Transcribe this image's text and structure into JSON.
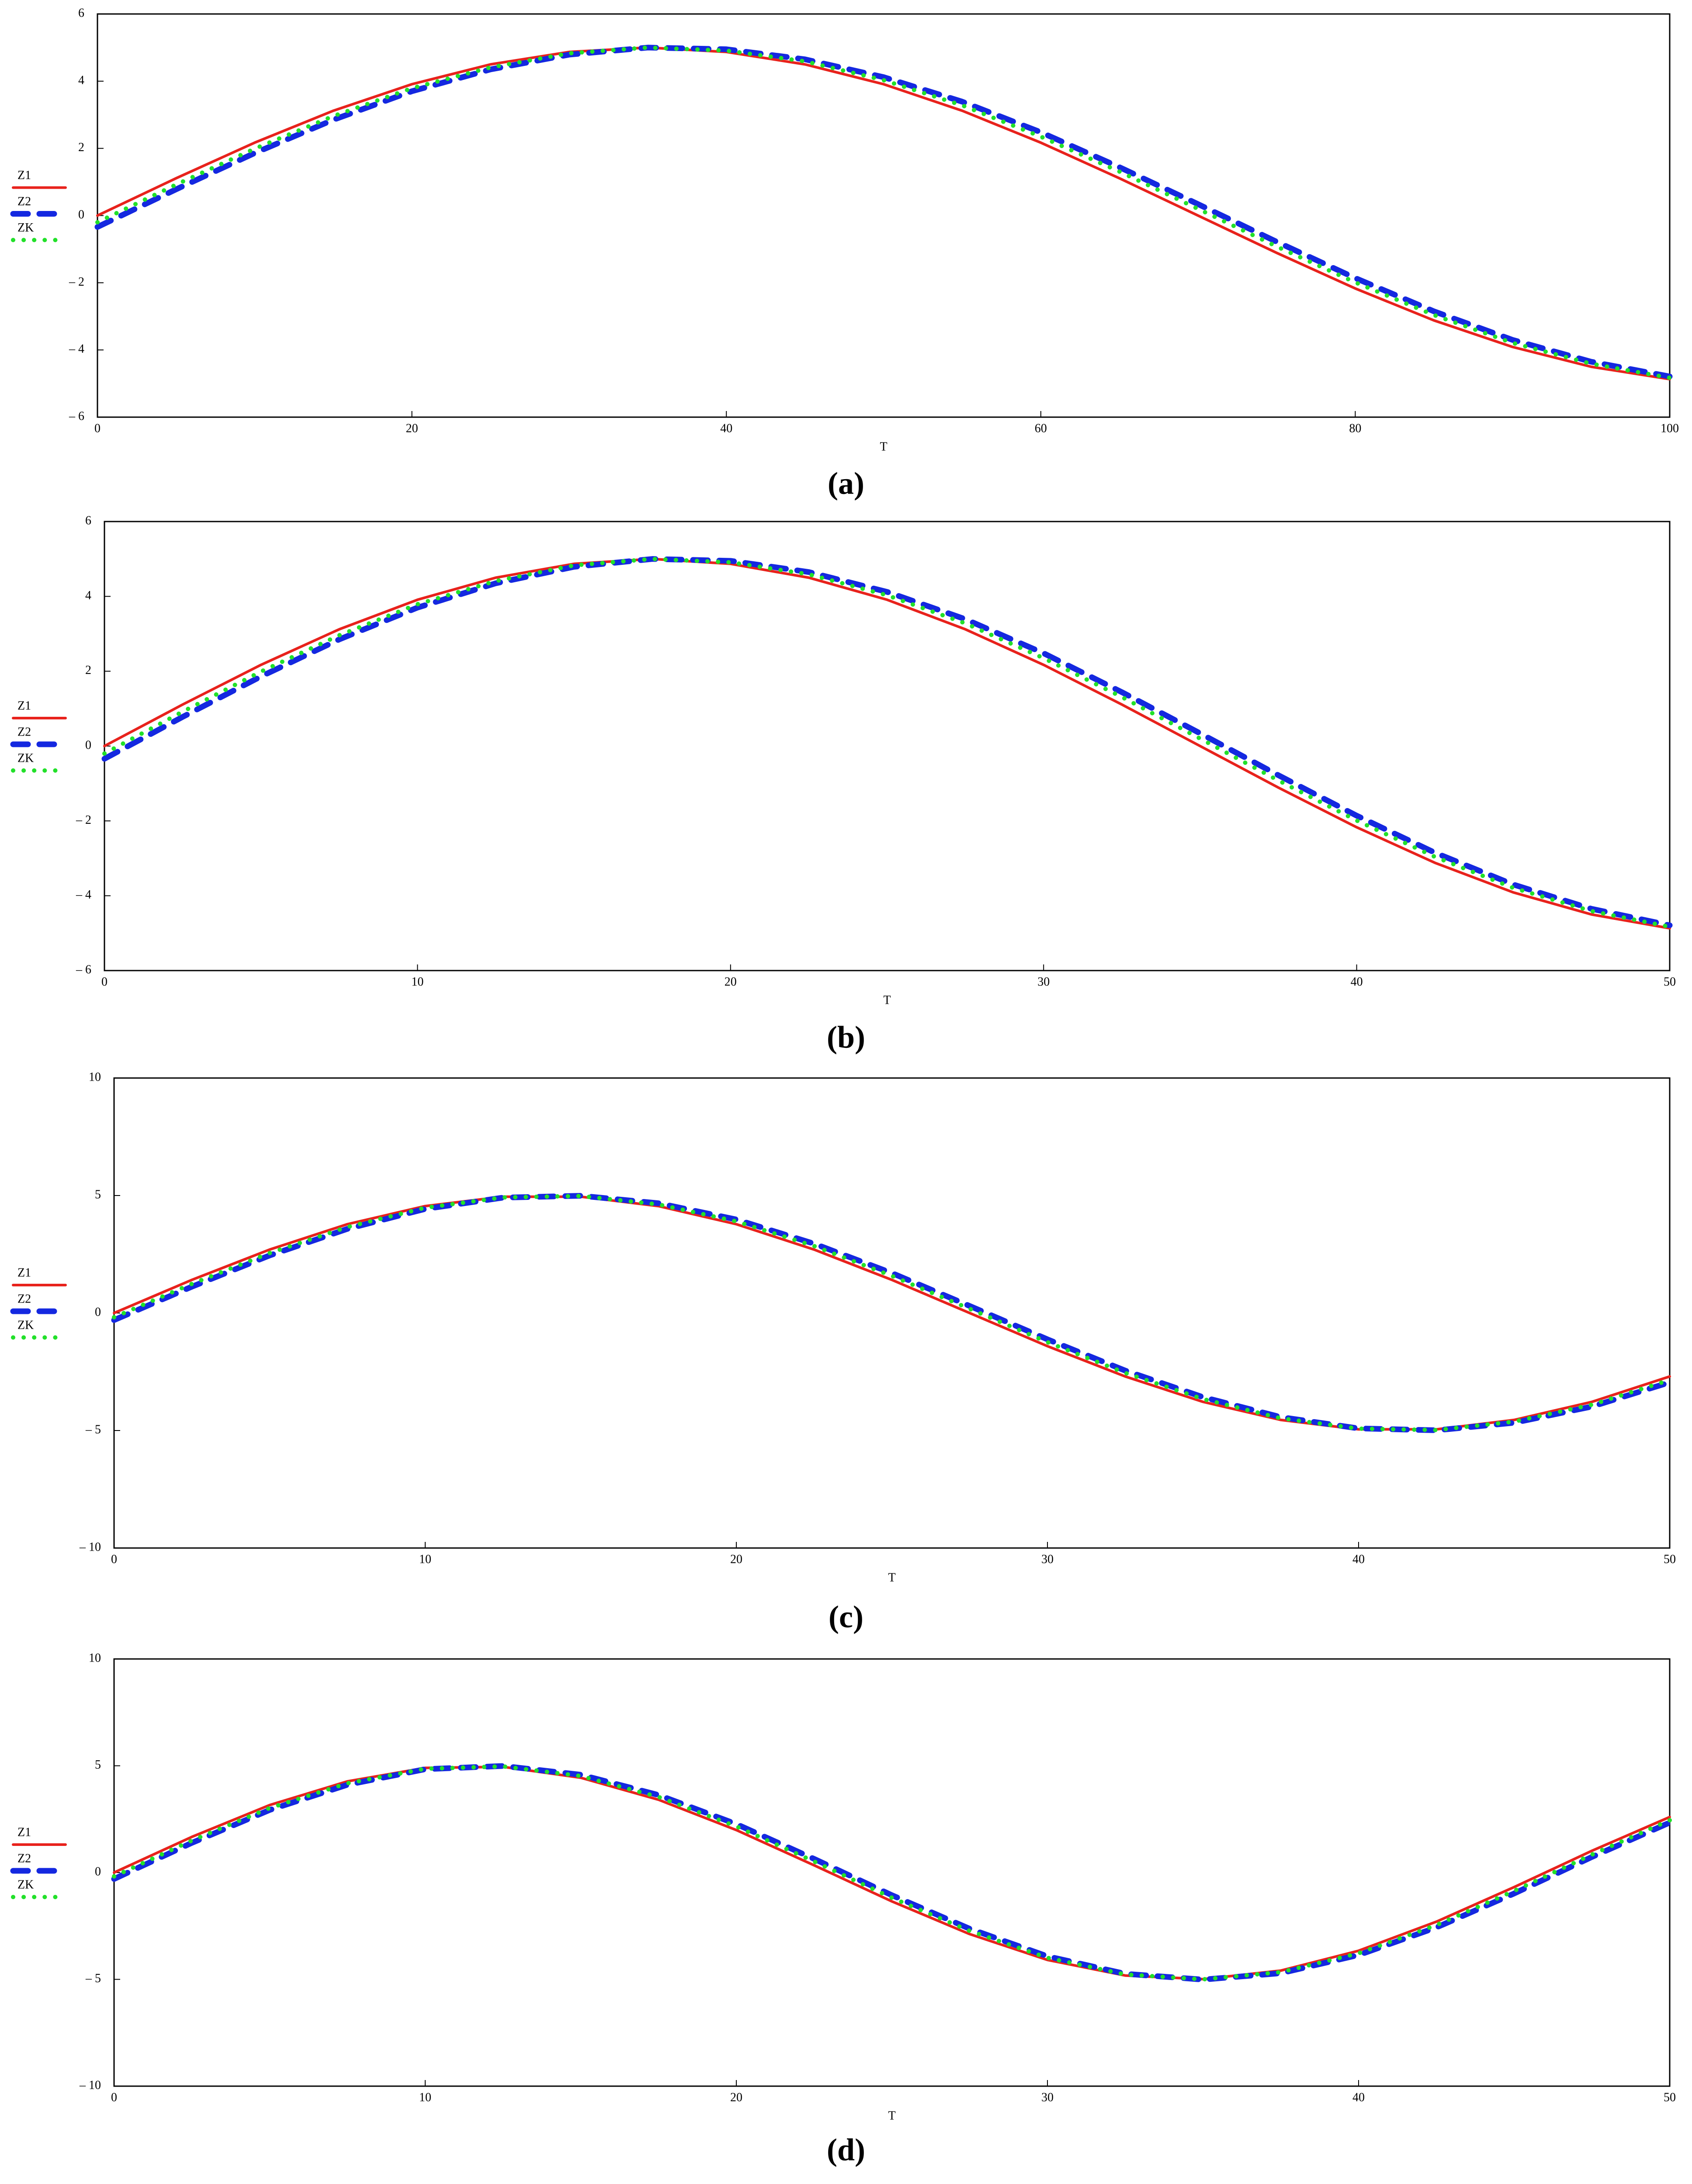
{
  "chart_data": [
    {
      "type": "line",
      "caption": "(a)",
      "xlabel": "T",
      "legend": "left",
      "x": [
        0,
        5,
        10,
        15,
        20,
        25,
        30,
        35,
        40,
        45,
        50,
        55,
        60,
        65,
        70,
        75,
        80,
        85,
        90,
        95,
        100
      ],
      "xlim": [
        0,
        100
      ],
      "xticks": [
        0,
        20,
        40,
        60,
        80,
        100
      ],
      "ylim": [
        -6,
        6
      ],
      "yticks": [
        {
          "value": -6,
          "label": "– 6"
        },
        {
          "value": -4,
          "label": "– 4"
        },
        {
          "value": -2,
          "label": "– 2"
        },
        0,
        2,
        4,
        6
      ],
      "series": [
        {
          "name": "Z1",
          "color": "#e8221c",
          "style": "solid",
          "values": [
            0,
            1.11,
            2.17,
            3.12,
            3.91,
            4.5,
            4.87,
            5,
            4.87,
            4.5,
            3.91,
            3.12,
            2.17,
            1.11,
            0,
            -1.11,
            -2.17,
            -3.12,
            -3.91,
            -4.5,
            -4.87
          ]
        },
        {
          "name": "Z2",
          "color": "#1428e0",
          "style": "dashed",
          "values": [
            -0.34,
            0.78,
            1.86,
            2.85,
            3.7,
            4.35,
            4.79,
            5,
            4.95,
            4.65,
            4.12,
            3.39,
            2.48,
            1.44,
            0.34,
            -0.78,
            -1.86,
            -2.85,
            -3.7,
            -4.35,
            -4.79
          ]
        },
        {
          "name": "ZK",
          "color": "#22e02a",
          "style": "dotted",
          "values": [
            -0.2,
            0.92,
            1.99,
            2.96,
            3.79,
            4.41,
            4.83,
            5,
            4.91,
            4.59,
            4.03,
            3.28,
            2.35,
            1.31,
            0.2,
            -0.92,
            -1.99,
            -2.96,
            -3.79,
            -4.41,
            -4.83
          ]
        }
      ]
    },
    {
      "type": "line",
      "caption": "(b)",
      "xlabel": "T",
      "legend": "left",
      "x": [
        0,
        2.5,
        5,
        7.5,
        10,
        12.5,
        15,
        17.5,
        20,
        22.5,
        25,
        27.5,
        30,
        32.5,
        35,
        37.5,
        40,
        42.5,
        45,
        47.5,
        50
      ],
      "xlim": [
        0,
        50
      ],
      "xticks": [
        0,
        10,
        20,
        30,
        40,
        50
      ],
      "ylim": [
        -6,
        6
      ],
      "yticks": [
        {
          "value": -6,
          "label": "– 6"
        },
        {
          "value": -4,
          "label": "– 4"
        },
        {
          "value": -2,
          "label": "– 2"
        },
        0,
        2,
        4,
        6
      ],
      "series": [
        {
          "name": "Z1",
          "color": "#e8221c",
          "style": "solid",
          "values": [
            0,
            1.11,
            2.17,
            3.12,
            3.91,
            4.5,
            4.87,
            5,
            4.87,
            4.5,
            3.91,
            3.12,
            2.17,
            1.11,
            0,
            -1.11,
            -2.17,
            -3.12,
            -3.91,
            -4.5,
            -4.87
          ]
        },
        {
          "name": "Z2",
          "color": "#1428e0",
          "style": "dashed",
          "values": [
            -0.34,
            0.78,
            1.86,
            2.85,
            3.7,
            4.35,
            4.79,
            5,
            4.95,
            4.65,
            4.12,
            3.39,
            2.48,
            1.44,
            0.34,
            -0.78,
            -1.86,
            -2.85,
            -3.7,
            -4.35,
            -4.79
          ]
        },
        {
          "name": "ZK",
          "color": "#22e02a",
          "style": "dotted",
          "values": [
            -0.2,
            0.92,
            1.99,
            2.96,
            3.79,
            4.41,
            4.83,
            5,
            4.91,
            4.59,
            4.03,
            3.28,
            2.35,
            1.31,
            0.2,
            -0.92,
            -1.99,
            -2.96,
            -3.79,
            -4.41,
            -4.83
          ]
        }
      ]
    },
    {
      "type": "line",
      "caption": "(c)",
      "xlabel": "T",
      "legend": "left",
      "x": [
        0,
        2.5,
        5,
        7.5,
        10,
        12.5,
        15,
        17.5,
        20,
        22.5,
        25,
        27.5,
        30,
        32.5,
        35,
        37.5,
        40,
        42.5,
        45,
        47.5,
        50
      ],
      "xlim": [
        0,
        50
      ],
      "xticks": [
        0,
        10,
        20,
        30,
        40,
        50
      ],
      "ylim": [
        -10,
        10
      ],
      "yticks": [
        {
          "value": -10,
          "label": "– 10"
        },
        {
          "value": -5,
          "label": "– 5"
        },
        0,
        5,
        10
      ],
      "series": [
        {
          "name": "Z1",
          "color": "#e8221c",
          "style": "solid",
          "values": [
            0,
            1.41,
            2.7,
            3.78,
            4.55,
            4.95,
            4.95,
            4.55,
            3.78,
            2.7,
            1.41,
            0,
            -1.41,
            -2.7,
            -3.78,
            -4.55,
            -4.95,
            -4.95,
            -4.55,
            -3.78,
            -2.7
          ]
        },
        {
          "name": "Z2",
          "color": "#1428e0",
          "style": "dashed",
          "values": [
            -0.3,
            1.12,
            2.45,
            3.58,
            4.43,
            4.91,
            4.99,
            4.67,
            3.98,
            2.95,
            1.7,
            0.3,
            -1.12,
            -2.45,
            -3.58,
            -4.43,
            -4.91,
            -4.99,
            -4.67,
            -3.98,
            -2.95
          ]
        },
        {
          "name": "ZK",
          "color": "#22e02a",
          "style": "dotted",
          "values": [
            -0.18,
            1.24,
            2.55,
            3.66,
            4.48,
            4.92,
            4.98,
            4.62,
            3.9,
            2.85,
            1.58,
            0.18,
            -1.24,
            -2.55,
            -3.66,
            -4.48,
            -4.92,
            -4.98,
            -4.62,
            -3.9,
            -2.85
          ]
        }
      ]
    },
    {
      "type": "line",
      "caption": "(d)",
      "xlabel": "T",
      "legend": "left",
      "x": [
        0,
        2.5,
        5,
        7.5,
        10,
        12.5,
        15,
        17.5,
        20,
        22.5,
        25,
        27.5,
        30,
        32.5,
        35,
        37.5,
        40,
        42.5,
        45,
        47.5,
        50
      ],
      "xlim": [
        0,
        50
      ],
      "xticks": [
        0,
        10,
        20,
        30,
        40,
        50
      ],
      "ylim": [
        -10,
        10
      ],
      "yticks": [
        {
          "value": -10,
          "label": "– 10"
        },
        {
          "value": -5,
          "label": "– 5"
        },
        0,
        5,
        10
      ],
      "series": [
        {
          "name": "Z1",
          "color": "#e8221c",
          "style": "solid",
          "values": [
            0,
            1.67,
            3.16,
            4.27,
            4.9,
            4.95,
            4.44,
            3.41,
            1.99,
            0.34,
            -1.35,
            -2.88,
            -4.09,
            -4.82,
            -4.99,
            -4.59,
            -3.66,
            -2.3,
            -0.68,
            1.02,
            2.6
          ]
        },
        {
          "name": "Z2",
          "color": "#1428e0",
          "style": "dashed",
          "values": [
            -0.3,
            1.39,
            2.93,
            4.11,
            4.84,
            4.99,
            4.58,
            3.63,
            2.27,
            0.64,
            -1.06,
            -2.63,
            -3.92,
            -4.74,
            -5.01,
            -4.71,
            -3.86,
            -2.57,
            -0.98,
            0.73,
            2.34
          ]
        },
        {
          "name": "ZK",
          "color": "#22e02a",
          "style": "dotted",
          "values": [
            -0.18,
            1.5,
            3.02,
            4.18,
            4.86,
            4.97,
            4.52,
            3.54,
            2.16,
            0.52,
            -1.18,
            -2.73,
            -3.99,
            -4.77,
            -5,
            -4.66,
            -3.78,
            -2.46,
            -0.86,
            0.84,
            2.45
          ]
        }
      ]
    }
  ]
}
